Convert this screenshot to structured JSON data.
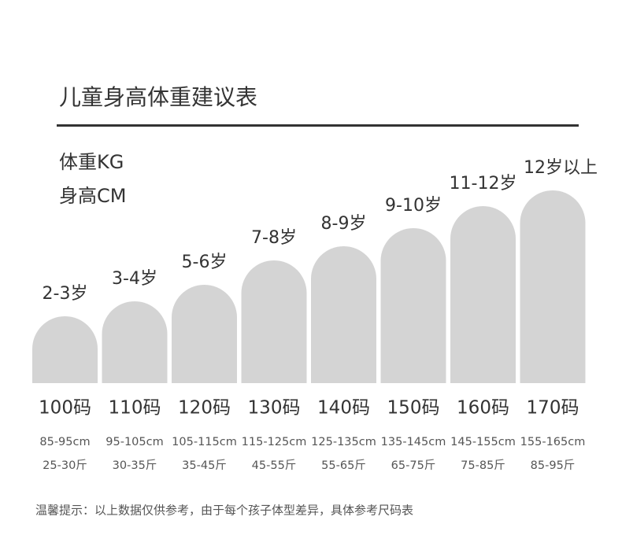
{
  "header": {
    "title": "儿童身高体重建议表",
    "weight_label": "体重KG",
    "height_label": "身高CM"
  },
  "columns": [
    {
      "age": "2-3岁",
      "size": "100码",
      "height": "85-95cm",
      "weight": "25-30斤"
    },
    {
      "age": "3-4岁",
      "size": "110码",
      "height": "95-105cm",
      "weight": "30-35斤"
    },
    {
      "age": "5-6岁",
      "size": "120码",
      "height": "105-115cm",
      "weight": "35-45斤"
    },
    {
      "age": "7-8岁",
      "size": "130码",
      "height": "115-125cm",
      "weight": "45-55斤"
    },
    {
      "age": "8-9岁",
      "size": "140码",
      "height": "125-135cm",
      "weight": "55-65斤"
    },
    {
      "age": "9-10岁",
      "size": "150码",
      "height": "135-145cm",
      "weight": "65-75斤"
    },
    {
      "age": "11-12岁",
      "size": "160码",
      "height": "145-155cm",
      "weight": "75-85斤"
    },
    {
      "age": "12岁以上",
      "size": "170码",
      "height": "155-165cm",
      "weight": "85-95斤"
    }
  ],
  "footnote": "温馨提示：以上数据仅供参考，由于每个孩子体型差异，具体参考尺码表"
}
